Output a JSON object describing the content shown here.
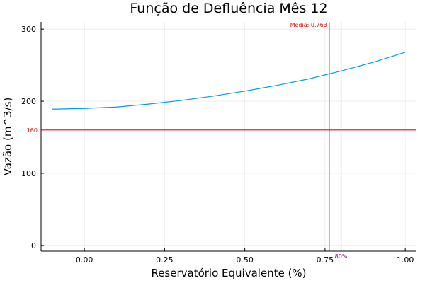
{
  "chart_data": {
    "type": "line",
    "title": "Função de Defluência Mês 12",
    "xlabel": "Reservatório Equivalente (%)",
    "ylabel": "Vazão (m^3/s)",
    "xlim": [
      -0.135,
      1.035
    ],
    "ylim": [
      -8,
      310
    ],
    "x_ticks": [
      0.0,
      0.25,
      0.5,
      0.75,
      1.0
    ],
    "x_tick_labels": [
      "0.00",
      "0.25",
      "0.50",
      "0.75",
      "1.00"
    ],
    "y_ticks": [
      0,
      100,
      200,
      300
    ],
    "y_tick_labels": [
      "0",
      "100",
      "200",
      "300"
    ],
    "grid": true,
    "legend": "none",
    "series": [
      {
        "color": "#009af9",
        "x": [
          -0.1,
          0.0,
          0.1,
          0.2,
          0.3,
          0.4,
          0.5,
          0.6,
          0.7,
          0.8,
          0.9,
          1.0
        ],
        "y": [
          189,
          190,
          192,
          196,
          201,
          207,
          214,
          222,
          231,
          242,
          254,
          268
        ]
      }
    ],
    "hlines": [
      {
        "y": 160,
        "color": "#ff0000",
        "label": "160"
      }
    ],
    "vlines": [
      {
        "x": 0.763,
        "color": "#ff0000",
        "label": "Média: 0.763",
        "label_position": "top-left"
      },
      {
        "x": 0.8,
        "color": "#c58ee0",
        "label": "80%",
        "label_color": "#800080",
        "label_position": "bottom"
      }
    ]
  }
}
